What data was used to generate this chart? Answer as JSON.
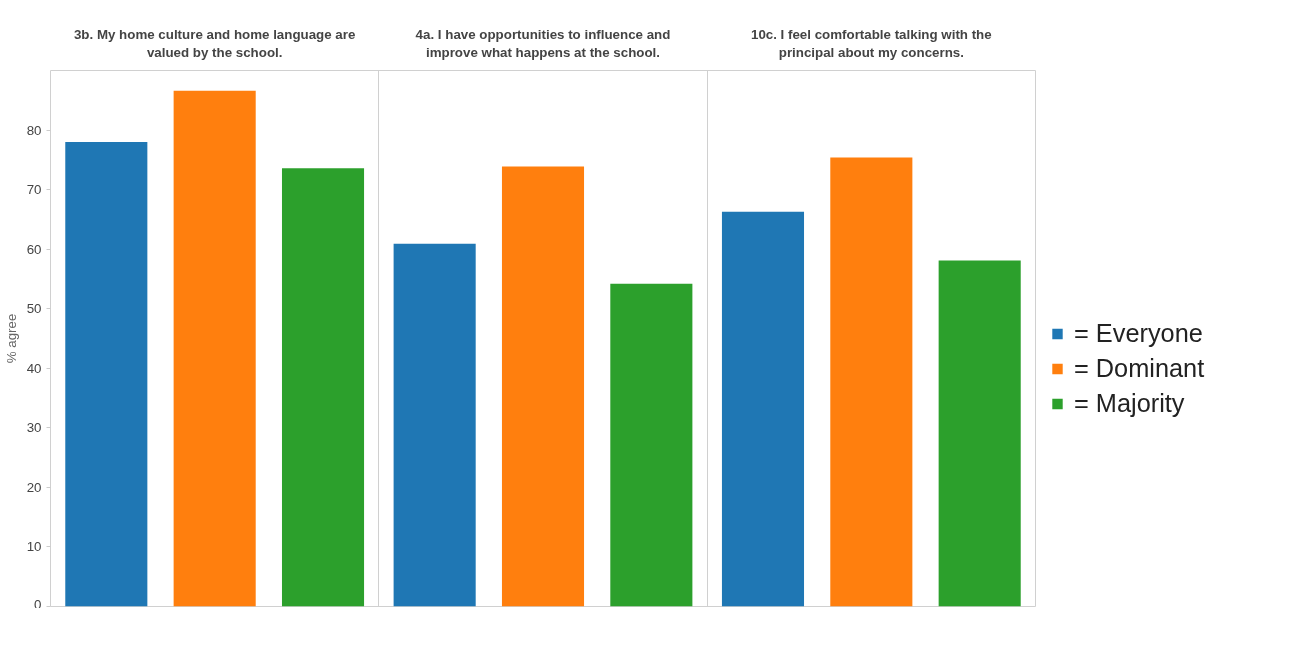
{
  "chart_data": {
    "type": "bar",
    "categories": [
      "3b. My home culture and home language are valued by the school.",
      "4a. I have opportunities to influence and improve what happens at the school.",
      "10c. I feel comfortable talking with the principal about my concerns."
    ],
    "ylabel": "% agree",
    "ylim": [
      0,
      90
    ],
    "yticks": [
      0,
      10,
      20,
      30,
      40,
      50,
      60,
      70,
      80
    ],
    "grid": false,
    "legend": "right",
    "series": [
      {
        "name": "= Everyone",
        "color": "#1f77b4",
        "values": [
          78.0,
          60.9,
          66.3
        ]
      },
      {
        "name": "= Dominant",
        "color": "#ff7f0e",
        "values": [
          86.6,
          73.9,
          75.4
        ]
      },
      {
        "name": "= Majority",
        "color": "#2ca02c",
        "values": [
          73.6,
          54.2,
          58.1
        ]
      }
    ]
  }
}
